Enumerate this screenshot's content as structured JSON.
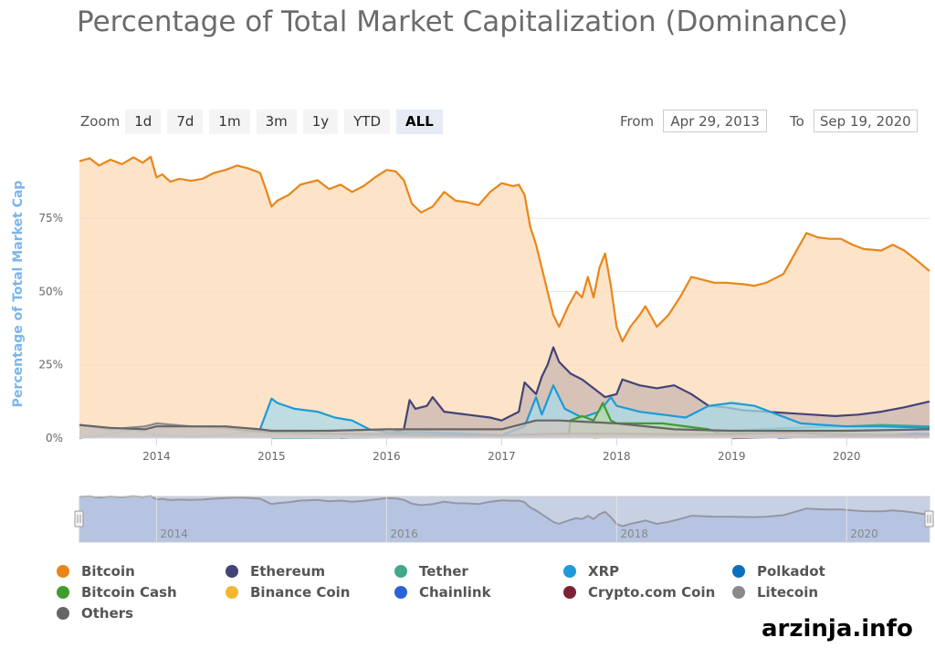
{
  "chart_data": {
    "type": "area",
    "title": "Percentage of Total Market Capitalization (Dominance)",
    "ylabel": "Percentage of Total Market Cap",
    "ylim": [
      0,
      95
    ],
    "yticks": [
      "0%",
      "25%",
      "50%",
      "75%"
    ],
    "ytick_values": [
      0,
      25,
      50,
      75
    ],
    "xlim": [
      2013.33,
      2020.72
    ],
    "xticks": [
      "2014",
      "2015",
      "2016",
      "2017",
      "2018",
      "2019",
      "2020"
    ],
    "xtick_values": [
      2014,
      2015,
      2016,
      2017,
      2018,
      2019,
      2020
    ],
    "navigator_xticks": [
      "2014",
      "2016",
      "2018",
      "2020"
    ],
    "navigator_xtick_values": [
      2014,
      2016,
      2018,
      2020
    ],
    "grid": true,
    "legend_position": "bottom",
    "series": [
      {
        "name": "Bitcoin",
        "color": "#e8861a",
        "fill": "#fcd9b6",
        "points": [
          [
            2013.33,
            94.5
          ],
          [
            2013.42,
            95.5
          ],
          [
            2013.5,
            93
          ],
          [
            2013.6,
            95
          ],
          [
            2013.7,
            93.5
          ],
          [
            2013.8,
            95.8
          ],
          [
            2013.88,
            94
          ],
          [
            2013.95,
            96
          ],
          [
            2014.0,
            89
          ],
          [
            2014.05,
            90
          ],
          [
            2014.12,
            87.5
          ],
          [
            2014.2,
            88.5
          ],
          [
            2014.3,
            87.8
          ],
          [
            2014.4,
            88.5
          ],
          [
            2014.5,
            90.5
          ],
          [
            2014.6,
            91.5
          ],
          [
            2014.7,
            93
          ],
          [
            2014.8,
            92
          ],
          [
            2014.9,
            90.5
          ],
          [
            2014.95,
            85
          ],
          [
            2015.0,
            79
          ],
          [
            2015.05,
            81
          ],
          [
            2015.15,
            83
          ],
          [
            2015.25,
            86.5
          ],
          [
            2015.4,
            88
          ],
          [
            2015.5,
            85
          ],
          [
            2015.6,
            86.5
          ],
          [
            2015.7,
            84
          ],
          [
            2015.8,
            86
          ],
          [
            2015.9,
            89
          ],
          [
            2016.0,
            91.5
          ],
          [
            2016.08,
            91
          ],
          [
            2016.15,
            88
          ],
          [
            2016.22,
            80
          ],
          [
            2016.3,
            77
          ],
          [
            2016.4,
            79
          ],
          [
            2016.5,
            84
          ],
          [
            2016.6,
            81
          ],
          [
            2016.7,
            80.5
          ],
          [
            2016.8,
            79.5
          ],
          [
            2016.9,
            84
          ],
          [
            2017.0,
            87
          ],
          [
            2017.1,
            86
          ],
          [
            2017.15,
            86.5
          ],
          [
            2017.2,
            83
          ],
          [
            2017.25,
            72
          ],
          [
            2017.3,
            66
          ],
          [
            2017.4,
            50
          ],
          [
            2017.45,
            42
          ],
          [
            2017.5,
            38
          ],
          [
            2017.58,
            45
          ],
          [
            2017.65,
            50
          ],
          [
            2017.7,
            48
          ],
          [
            2017.75,
            55
          ],
          [
            2017.8,
            48
          ],
          [
            2017.85,
            58
          ],
          [
            2017.9,
            63
          ],
          [
            2017.95,
            52
          ],
          [
            2018.0,
            38
          ],
          [
            2018.05,
            33
          ],
          [
            2018.12,
            38
          ],
          [
            2018.2,
            42
          ],
          [
            2018.25,
            45
          ],
          [
            2018.35,
            38
          ],
          [
            2018.45,
            42
          ],
          [
            2018.55,
            48
          ],
          [
            2018.65,
            55
          ],
          [
            2018.75,
            54
          ],
          [
            2018.85,
            53
          ],
          [
            2018.95,
            53
          ],
          [
            2019.1,
            52.5
          ],
          [
            2019.2,
            52
          ],
          [
            2019.3,
            53
          ],
          [
            2019.45,
            56
          ],
          [
            2019.55,
            63
          ],
          [
            2019.65,
            70
          ],
          [
            2019.75,
            68.5
          ],
          [
            2019.85,
            68
          ],
          [
            2019.95,
            68
          ],
          [
            2020.05,
            66
          ],
          [
            2020.15,
            64.5
          ],
          [
            2020.3,
            64
          ],
          [
            2020.4,
            66
          ],
          [
            2020.5,
            64
          ],
          [
            2020.6,
            61
          ],
          [
            2020.72,
            57
          ]
        ]
      },
      {
        "name": "Ethereum",
        "color": "#434378",
        "fill": "#c9b7b1",
        "points": [
          [
            2015.6,
            0
          ],
          [
            2015.8,
            0.5
          ],
          [
            2016.0,
            1.5
          ],
          [
            2016.15,
            3
          ],
          [
            2016.2,
            13
          ],
          [
            2016.25,
            10
          ],
          [
            2016.35,
            11
          ],
          [
            2016.4,
            14
          ],
          [
            2016.5,
            9
          ],
          [
            2016.7,
            8
          ],
          [
            2016.9,
            7
          ],
          [
            2017.0,
            6
          ],
          [
            2017.15,
            9
          ],
          [
            2017.2,
            19
          ],
          [
            2017.3,
            15
          ],
          [
            2017.35,
            21
          ],
          [
            2017.4,
            25
          ],
          [
            2017.45,
            31
          ],
          [
            2017.5,
            26
          ],
          [
            2017.6,
            22
          ],
          [
            2017.7,
            20
          ],
          [
            2017.8,
            17
          ],
          [
            2017.9,
            14
          ],
          [
            2018.0,
            15
          ],
          [
            2018.05,
            20
          ],
          [
            2018.2,
            18
          ],
          [
            2018.35,
            17
          ],
          [
            2018.5,
            18
          ],
          [
            2018.65,
            15
          ],
          [
            2018.8,
            11
          ],
          [
            2018.95,
            10.5
          ],
          [
            2019.1,
            9.5
          ],
          [
            2019.3,
            9
          ],
          [
            2019.5,
            8.5
          ],
          [
            2019.7,
            8
          ],
          [
            2019.9,
            7.5
          ],
          [
            2020.1,
            8
          ],
          [
            2020.3,
            9
          ],
          [
            2020.5,
            10.5
          ],
          [
            2020.72,
            12.5
          ]
        ]
      },
      {
        "name": "Tether",
        "color": "#43a88c",
        "fill": "#bfd7c6",
        "points": [
          [
            2015.0,
            0
          ],
          [
            2016.0,
            0.2
          ],
          [
            2017.0,
            0.5
          ],
          [
            2017.5,
            0.8
          ],
          [
            2018.0,
            1.5
          ],
          [
            2018.5,
            2
          ],
          [
            2019.0,
            2.5
          ],
          [
            2019.5,
            3.5
          ],
          [
            2020.0,
            4
          ],
          [
            2020.3,
            4.5
          ],
          [
            2020.72,
            4
          ]
        ]
      },
      {
        "name": "XRP",
        "color": "#1e9bd7",
        "fill": "#a9d9e8",
        "points": [
          [
            2013.33,
            0
          ],
          [
            2013.6,
            1.5
          ],
          [
            2013.8,
            3
          ],
          [
            2014.0,
            1
          ],
          [
            2014.3,
            0.5
          ],
          [
            2014.6,
            1
          ],
          [
            2014.9,
            3
          ],
          [
            2015.0,
            13.5
          ],
          [
            2015.05,
            12
          ],
          [
            2015.2,
            10
          ],
          [
            2015.4,
            9
          ],
          [
            2015.55,
            7
          ],
          [
            2015.7,
            6
          ],
          [
            2015.85,
            3
          ],
          [
            2016.0,
            2
          ],
          [
            2016.3,
            2
          ],
          [
            2016.7,
            1.5
          ],
          [
            2017.0,
            1
          ],
          [
            2017.2,
            4
          ],
          [
            2017.3,
            14
          ],
          [
            2017.35,
            8
          ],
          [
            2017.45,
            18
          ],
          [
            2017.55,
            10
          ],
          [
            2017.7,
            7
          ],
          [
            2017.85,
            9
          ],
          [
            2017.95,
            14
          ],
          [
            2018.0,
            11
          ],
          [
            2018.2,
            9
          ],
          [
            2018.4,
            8
          ],
          [
            2018.6,
            7
          ],
          [
            2018.8,
            11
          ],
          [
            2019.0,
            12
          ],
          [
            2019.2,
            11
          ],
          [
            2019.4,
            8
          ],
          [
            2019.6,
            5
          ],
          [
            2019.8,
            4.5
          ],
          [
            2020.0,
            4
          ],
          [
            2020.3,
            4
          ],
          [
            2020.72,
            3.5
          ]
        ]
      },
      {
        "name": "Polkadot",
        "color": "#0b6fbd",
        "fill": "#a9cbe8",
        "points": [
          [
            2020.6,
            0
          ],
          [
            2020.65,
            0.8
          ],
          [
            2020.72,
            1
          ]
        ]
      },
      {
        "name": "Bitcoin Cash",
        "color": "#3f9c2e",
        "fill": "#b9d8a8",
        "points": [
          [
            2017.58,
            0
          ],
          [
            2017.6,
            6
          ],
          [
            2017.7,
            7.5
          ],
          [
            2017.8,
            6
          ],
          [
            2017.88,
            12
          ],
          [
            2017.95,
            6
          ],
          [
            2018.0,
            5
          ],
          [
            2018.2,
            5
          ],
          [
            2018.4,
            5
          ],
          [
            2018.6,
            4
          ],
          [
            2018.8,
            3
          ],
          [
            2018.9,
            1.5
          ],
          [
            2019.2,
            1.5
          ],
          [
            2019.6,
            1.5
          ],
          [
            2020.0,
            1.3
          ],
          [
            2020.72,
            1.2
          ]
        ]
      },
      {
        "name": "Binance Coin",
        "color": "#f2b632",
        "fill": "#f7ddb0",
        "points": [
          [
            2017.8,
            0
          ],
          [
            2018.0,
            0.5
          ],
          [
            2019.0,
            0.8
          ],
          [
            2019.5,
            1.5
          ],
          [
            2020.0,
            1.2
          ],
          [
            2020.72,
            1.2
          ]
        ]
      },
      {
        "name": "Chainlink",
        "color": "#2b63d6",
        "fill": "#b3c5ea",
        "points": [
          [
            2019.4,
            0
          ],
          [
            2019.8,
            0.5
          ],
          [
            2020.3,
            0.8
          ],
          [
            2020.6,
            1.5
          ],
          [
            2020.72,
            1.3
          ]
        ]
      },
      {
        "name": "Crypto.com Coin",
        "color": "#7b2335",
        "fill": "#d1b0b3",
        "points": [
          [
            2019.0,
            0
          ],
          [
            2019.5,
            0.3
          ],
          [
            2020.0,
            0.5
          ],
          [
            2020.72,
            0.4
          ]
        ]
      },
      {
        "name": "Litecoin",
        "color": "#8a8a8a",
        "fill": "#cfc4bd",
        "points": [
          [
            2013.33,
            4.5
          ],
          [
            2013.6,
            3
          ],
          [
            2013.9,
            4
          ],
          [
            2014.0,
            5
          ],
          [
            2014.3,
            4
          ],
          [
            2014.6,
            3.5
          ],
          [
            2014.8,
            2.5
          ],
          [
            2015.0,
            2
          ],
          [
            2015.5,
            1.5
          ],
          [
            2016.0,
            1.3
          ],
          [
            2016.5,
            1
          ],
          [
            2017.0,
            1
          ],
          [
            2017.5,
            1.5
          ],
          [
            2018.0,
            1.5
          ],
          [
            2018.5,
            1.3
          ],
          [
            2019.0,
            1.3
          ],
          [
            2019.5,
            1.8
          ],
          [
            2020.0,
            1.2
          ],
          [
            2020.72,
            1
          ]
        ]
      },
      {
        "name": "Others",
        "color": "#666666",
        "fill": "#cfc7c2",
        "points": [
          [
            2013.33,
            4.5
          ],
          [
            2013.6,
            3.5
          ],
          [
            2013.9,
            3
          ],
          [
            2014.0,
            4
          ],
          [
            2014.3,
            4
          ],
          [
            2014.6,
            4
          ],
          [
            2014.9,
            3
          ],
          [
            2015.0,
            2.5
          ],
          [
            2015.5,
            2.5
          ],
          [
            2016.0,
            3
          ],
          [
            2016.5,
            3
          ],
          [
            2017.0,
            3
          ],
          [
            2017.3,
            6
          ],
          [
            2017.5,
            6
          ],
          [
            2018.0,
            5
          ],
          [
            2018.5,
            3
          ],
          [
            2019.0,
            2.5
          ],
          [
            2019.5,
            2.5
          ],
          [
            2020.0,
            2.5
          ],
          [
            2020.72,
            3
          ]
        ]
      }
    ]
  },
  "zoom": {
    "label": "Zoom",
    "buttons": [
      "1d",
      "7d",
      "1m",
      "3m",
      "1y",
      "YTD",
      "ALL"
    ],
    "active": "ALL"
  },
  "range": {
    "from_label": "From",
    "from_value": "Apr 29, 2013",
    "to_label": "To",
    "to_value": "Sep 19, 2020"
  },
  "watermark": "arzinja.info"
}
